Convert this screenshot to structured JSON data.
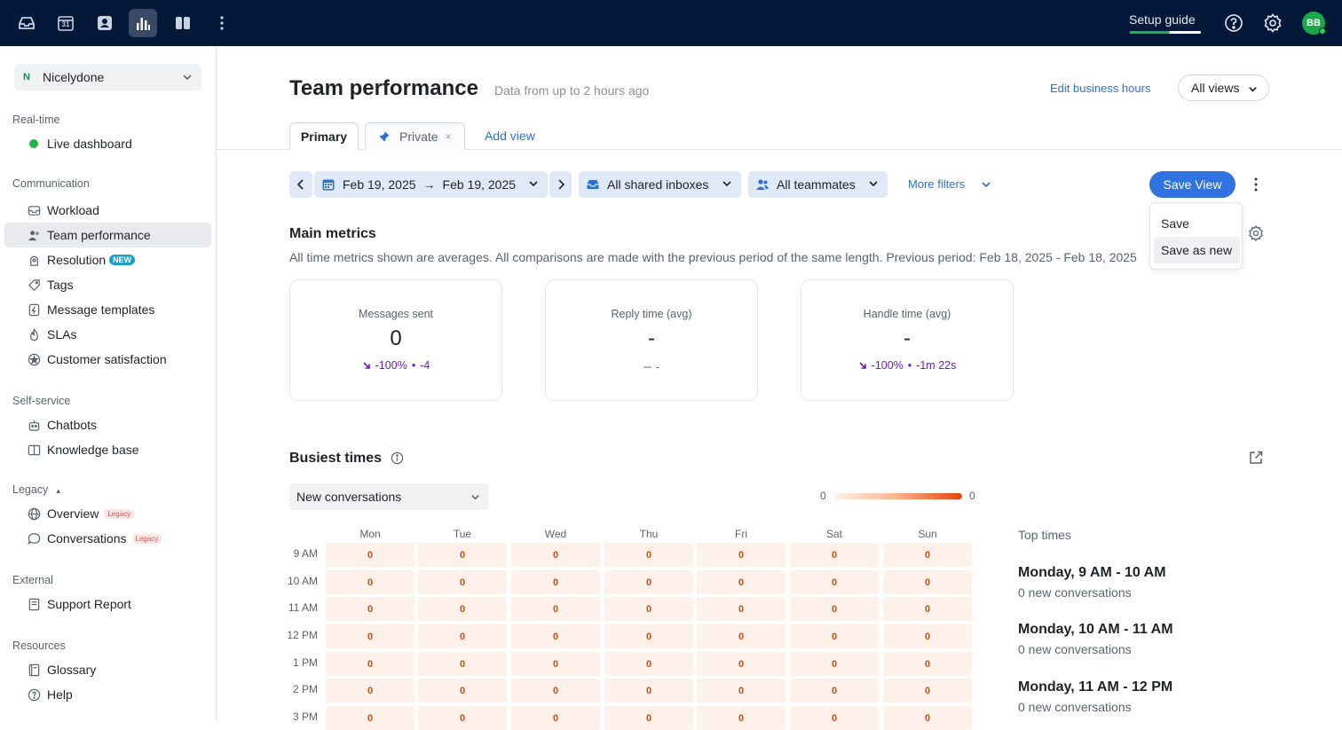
{
  "topbar": {
    "icons": [
      "inbox-icon",
      "calendar-icon",
      "contacts-icon",
      "analytics-icon",
      "split-view-icon",
      "more-icon"
    ],
    "calendar_day": "31",
    "setup_label": "Setup guide",
    "setup_progress": 0.56,
    "avatar_initials": "BB"
  },
  "sidebar": {
    "workspace_badge": "N",
    "workspace_name": "Nicelydone",
    "sections": {
      "realtime": "Real-time",
      "communication": "Communication",
      "selfservice": "Self-service",
      "legacy": "Legacy",
      "external": "External",
      "resources": "Resources"
    },
    "live_dashboard": "Live dashboard",
    "workload": "Workload",
    "team_performance": "Team performance",
    "resolution": "Resolution",
    "new_badge": "NEW",
    "tags": "Tags",
    "message_templates": "Message templates",
    "slas": "SLAs",
    "customer_satisfaction": "Customer satisfaction",
    "chatbots": "Chatbots",
    "knowledge_base": "Knowledge base",
    "overview": "Overview",
    "conversations": "Conversations",
    "legacy_badge": "Legacy",
    "support_report": "Support Report",
    "glossary": "Glossary",
    "help": "Help"
  },
  "header": {
    "title": "Team performance",
    "subtitle": "Data from up to 2 hours ago",
    "edit_hours": "Edit business hours",
    "all_views": "All views"
  },
  "tabs": {
    "primary": "Primary",
    "private": "Private",
    "close": "×",
    "add_view": "Add view"
  },
  "filters": {
    "date_from": "Feb 19, 2025",
    "date_arrow": "→",
    "date_to": "Feb 19, 2025",
    "inboxes": "All shared inboxes",
    "teammates": "All teammates",
    "more_filters": "More filters",
    "save_view": "Save View"
  },
  "save_menu": {
    "save": "Save",
    "save_as_new": "Save as new"
  },
  "main_metrics": {
    "title": "Main metrics",
    "description": "All time metrics shown are averages. All comparisons are made with the previous period of the same length. Previous period: Feb 18, 2025 - Feb 18, 2025",
    "cards": [
      {
        "label": "Messages sent",
        "value": "0",
        "pct": "-100%",
        "sep": "•",
        "delta": "-4"
      },
      {
        "label": "Reply time (avg)",
        "value": "-",
        "pct": "–",
        "delta": "-"
      },
      {
        "label": "Handle time (avg)",
        "value": "-",
        "pct": "-100%",
        "sep": "•",
        "delta": "-1m 22s"
      }
    ]
  },
  "busiest": {
    "title": "Busiest times",
    "metric_select": "New conversations",
    "scale_min": "0",
    "scale_max": "0",
    "days": [
      "Mon",
      "Tue",
      "Wed",
      "Thu",
      "Fri",
      "Sat",
      "Sun"
    ],
    "hours": [
      "9 AM",
      "10 AM",
      "11 AM",
      "12 PM",
      "1 PM",
      "2 PM",
      "3 PM"
    ],
    "cell_value": "0",
    "top_times_label": "Top times",
    "top_times": [
      {
        "title": "Monday, 9 AM - 10 AM",
        "sub": "0 new conversations"
      },
      {
        "title": "Monday, 10 AM - 11 AM",
        "sub": "0 new conversations"
      },
      {
        "title": "Monday, 11 AM - 12 PM",
        "sub": "0 new conversations"
      }
    ]
  }
}
